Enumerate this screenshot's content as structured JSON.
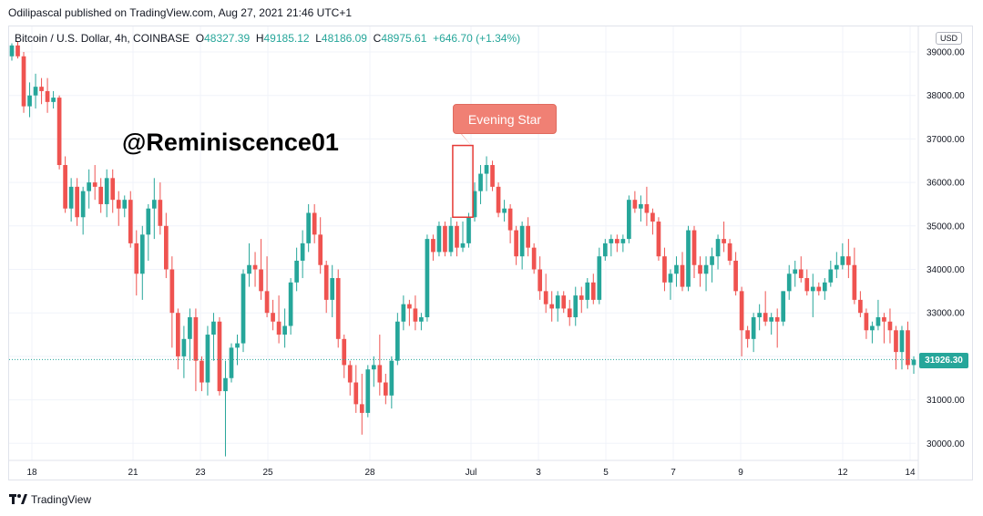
{
  "publisher_line": "Odilipascal published on TradingView.com, Aug 27, 2021 21:46 UTC+1",
  "legend": {
    "symbol": "Bitcoin / U.S. Dollar, 4h, COINBASE",
    "open_label": "O",
    "open": "48327.39",
    "high_label": "H",
    "high": "49185.12",
    "low_label": "L",
    "low": "48186.09",
    "close_label": "C",
    "close": "48975.61",
    "change": "+646.70 (+1.34%)"
  },
  "currency_button": "USD",
  "watermark_text": "@Reminiscence01",
  "callout_text": "Evening  Star",
  "last_price": "31926.30",
  "footer_brand": "TradingView",
  "colors": {
    "up": "#26a69a",
    "down": "#ef5350",
    "grid": "#f0f3fa",
    "callout": "#f08074"
  },
  "chart_data": {
    "type": "candlestick",
    "y_range": [
      29600,
      39300
    ],
    "y_ticks": [
      "39000.00",
      "38000.00",
      "37000.00",
      "36000.00",
      "35000.00",
      "34000.00",
      "33000.00",
      "32000.00",
      "31000.00",
      "30000.00"
    ],
    "y_tick_values": [
      39000,
      38000,
      37000,
      36000,
      35000,
      34000,
      33000,
      32000,
      31000,
      30000
    ],
    "x_ticks": [
      "18",
      "21",
      "23",
      "25",
      "28",
      "Jul",
      "3",
      "5",
      "7",
      "9",
      "12",
      "14"
    ],
    "annotation": {
      "label": "Evening  Star",
      "from_index": 75,
      "to_index": 77,
      "price_low": 35200,
      "price_high": 36850
    },
    "last_price": 31926.3,
    "candles": [
      [
        38900,
        39200,
        38800,
        39150
      ],
      [
        39150,
        39250,
        38850,
        38900
      ],
      [
        38900,
        39000,
        37600,
        37750
      ],
      [
        37750,
        38300,
        37500,
        38000
      ],
      [
        38000,
        38500,
        37700,
        38200
      ],
      [
        38200,
        38400,
        37800,
        38100
      ],
      [
        38100,
        38400,
        37600,
        37850
      ],
      [
        37850,
        38100,
        37700,
        37950
      ],
      [
        37950,
        38000,
        36300,
        36400
      ],
      [
        36400,
        36600,
        35300,
        35400
      ],
      [
        35400,
        36100,
        35100,
        35900
      ],
      [
        35900,
        36100,
        35000,
        35200
      ],
      [
        35200,
        35900,
        34800,
        35800
      ],
      [
        35800,
        36300,
        35400,
        36000
      ],
      [
        36000,
        36400,
        35600,
        35900
      ],
      [
        35900,
        36100,
        35300,
        35500
      ],
      [
        35500,
        36300,
        35200,
        36100
      ],
      [
        36100,
        36300,
        35300,
        35600
      ],
      [
        35600,
        35800,
        35000,
        35400
      ],
      [
        35400,
        35700,
        35200,
        35600
      ],
      [
        35600,
        35800,
        34500,
        34600
      ],
      [
        34600,
        34900,
        33400,
        33900
      ],
      [
        33900,
        35000,
        33300,
        34800
      ],
      [
        34800,
        35500,
        34200,
        35400
      ],
      [
        35400,
        36100,
        34700,
        35600
      ],
      [
        35600,
        36000,
        34800,
        35000
      ],
      [
        35000,
        35300,
        33800,
        34000
      ],
      [
        34000,
        34300,
        32200,
        33000
      ],
      [
        33000,
        33100,
        31700,
        32000
      ],
      [
        32000,
        32700,
        31500,
        32400
      ],
      [
        32400,
        33100,
        31900,
        32900
      ],
      [
        32900,
        33100,
        31200,
        31900
      ],
      [
        31900,
        32000,
        31200,
        31400
      ],
      [
        31400,
        32700,
        31100,
        32500
      ],
      [
        32500,
        33000,
        31900,
        32800
      ],
      [
        32800,
        32900,
        31100,
        31200
      ],
      [
        31200,
        31900,
        29700,
        31500
      ],
      [
        31500,
        32300,
        31400,
        32200
      ],
      [
        32200,
        32500,
        31800,
        32300
      ],
      [
        32300,
        34000,
        32100,
        33900
      ],
      [
        33900,
        34600,
        33600,
        34100
      ],
      [
        34100,
        34400,
        33600,
        34000
      ],
      [
        34000,
        34700,
        33300,
        33500
      ],
      [
        33500,
        34300,
        32900,
        33000
      ],
      [
        33000,
        33300,
        32600,
        32800
      ],
      [
        32800,
        33400,
        32300,
        32500
      ],
      [
        32500,
        33100,
        32200,
        32700
      ],
      [
        32700,
        33800,
        32500,
        33700
      ],
      [
        33700,
        34500,
        33500,
        34200
      ],
      [
        34200,
        34900,
        33800,
        34600
      ],
      [
        34600,
        35500,
        34400,
        35300
      ],
      [
        35300,
        35500,
        34600,
        34800
      ],
      [
        34800,
        35200,
        33900,
        34100
      ],
      [
        34100,
        34200,
        33000,
        33300
      ],
      [
        33300,
        34100,
        32900,
        33800
      ],
      [
        33800,
        34000,
        32200,
        32400
      ],
      [
        32400,
        32500,
        31500,
        31800
      ],
      [
        31800,
        31900,
        31100,
        31400
      ],
      [
        31400,
        31800,
        30700,
        30900
      ],
      [
        30900,
        31600,
        30200,
        30700
      ],
      [
        30700,
        31800,
        30600,
        31700
      ],
      [
        31700,
        32000,
        31300,
        31800
      ],
      [
        31800,
        32500,
        31100,
        31400
      ],
      [
        31400,
        31600,
        30900,
        31100
      ],
      [
        31100,
        32000,
        30800,
        31900
      ],
      [
        31900,
        33000,
        31800,
        32800
      ],
      [
        32800,
        33400,
        32600,
        33200
      ],
      [
        33200,
        33300,
        32700,
        33100
      ],
      [
        33100,
        33400,
        32600,
        32800
      ],
      [
        32800,
        33000,
        32600,
        32900
      ],
      [
        32900,
        34800,
        32800,
        34700
      ],
      [
        34700,
        34800,
        34200,
        34400
      ],
      [
        34400,
        35100,
        34300,
        35000
      ],
      [
        35000,
        35100,
        34300,
        34400
      ],
      [
        34400,
        35200,
        34300,
        35000
      ],
      [
        35000,
        35100,
        34300,
        34500
      ],
      [
        34500,
        35100,
        34400,
        34600
      ],
      [
        34600,
        35300,
        34500,
        35200
      ],
      [
        35200,
        36000,
        35100,
        35800
      ],
      [
        35800,
        36400,
        35500,
        36200
      ],
      [
        36200,
        36600,
        35800,
        36400
      ],
      [
        36400,
        36500,
        35800,
        35900
      ],
      [
        35900,
        36000,
        35200,
        35300
      ],
      [
        35300,
        35600,
        35100,
        35400
      ],
      [
        35400,
        35500,
        34600,
        34900
      ],
      [
        34900,
        35000,
        34100,
        34300
      ],
      [
        34300,
        35100,
        34000,
        35000
      ],
      [
        35000,
        35200,
        34300,
        34500
      ],
      [
        34500,
        34600,
        33900,
        34000
      ],
      [
        34000,
        34300,
        33300,
        33500
      ],
      [
        33500,
        33900,
        33000,
        33200
      ],
      [
        33200,
        33500,
        32800,
        33100
      ],
      [
        33100,
        33500,
        32800,
        33400
      ],
      [
        33400,
        33500,
        33000,
        33100
      ],
      [
        33100,
        33300,
        32700,
        32900
      ],
      [
        32900,
        33600,
        32700,
        33400
      ],
      [
        33400,
        33600,
        33000,
        33300
      ],
      [
        33300,
        33800,
        33100,
        33700
      ],
      [
        33700,
        33900,
        33200,
        33300
      ],
      [
        33300,
        34500,
        33200,
        34300
      ],
      [
        34300,
        34700,
        34200,
        34600
      ],
      [
        34600,
        34800,
        34300,
        34700
      ],
      [
        34700,
        34800,
        34400,
        34600
      ],
      [
        34600,
        34800,
        34400,
        34700
      ],
      [
        34700,
        35700,
        34600,
        35600
      ],
      [
        35600,
        35800,
        35300,
        35400
      ],
      [
        35400,
        35700,
        35100,
        35500
      ],
      [
        35500,
        35900,
        35000,
        35300
      ],
      [
        35300,
        35400,
        34800,
        35100
      ],
      [
        35100,
        35200,
        34200,
        34300
      ],
      [
        34300,
        34500,
        33500,
        33700
      ],
      [
        33700,
        34000,
        33300,
        33900
      ],
      [
        33900,
        34300,
        33600,
        34100
      ],
      [
        34100,
        34400,
        33500,
        33600
      ],
      [
        33600,
        35000,
        33500,
        34900
      ],
      [
        34900,
        35000,
        33800,
        34100
      ],
      [
        34100,
        34300,
        33600,
        33900
      ],
      [
        33900,
        34300,
        33500,
        34100
      ],
      [
        34100,
        34500,
        33700,
        34300
      ],
      [
        34300,
        34800,
        34000,
        34700
      ],
      [
        34700,
        35100,
        34400,
        34600
      ],
      [
        34600,
        34700,
        34100,
        34200
      ],
      [
        34200,
        34400,
        33400,
        33500
      ],
      [
        33500,
        33600,
        32000,
        32600
      ],
      [
        32600,
        32700,
        32200,
        32400
      ],
      [
        32400,
        33000,
        32100,
        32900
      ],
      [
        32900,
        33200,
        32600,
        33000
      ],
      [
        33000,
        33500,
        32700,
        32800
      ],
      [
        32800,
        33000,
        32500,
        32900
      ],
      [
        32900,
        33100,
        32200,
        32800
      ],
      [
        32800,
        33500,
        32700,
        33500
      ],
      [
        33500,
        34100,
        33300,
        33900
      ],
      [
        33900,
        34200,
        33600,
        34000
      ],
      [
        34000,
        34300,
        33700,
        33800
      ],
      [
        33800,
        34000,
        33400,
        33500
      ],
      [
        33500,
        33900,
        32900,
        33600
      ],
      [
        33600,
        33700,
        33400,
        33500
      ],
      [
        33500,
        33800,
        33300,
        33700
      ],
      [
        33700,
        34200,
        33600,
        34000
      ],
      [
        34000,
        34400,
        33800,
        34100
      ],
      [
        34100,
        34600,
        34000,
        34300
      ],
      [
        34300,
        34700,
        33800,
        34100
      ],
      [
        34100,
        34500,
        33200,
        33300
      ],
      [
        33300,
        33500,
        32900,
        33000
      ],
      [
        33000,
        33100,
        32400,
        32600
      ],
      [
        32600,
        32800,
        32300,
        32700
      ],
      [
        32700,
        33300,
        32600,
        32900
      ],
      [
        32900,
        33000,
        32300,
        32800
      ],
      [
        32800,
        33100,
        32300,
        32600
      ],
      [
        32600,
        32700,
        31700,
        32100
      ],
      [
        32100,
        32700,
        31700,
        32600
      ],
      [
        32600,
        32800,
        31700,
        31800
      ],
      [
        31800,
        32000,
        31600,
        31926
      ]
    ]
  }
}
